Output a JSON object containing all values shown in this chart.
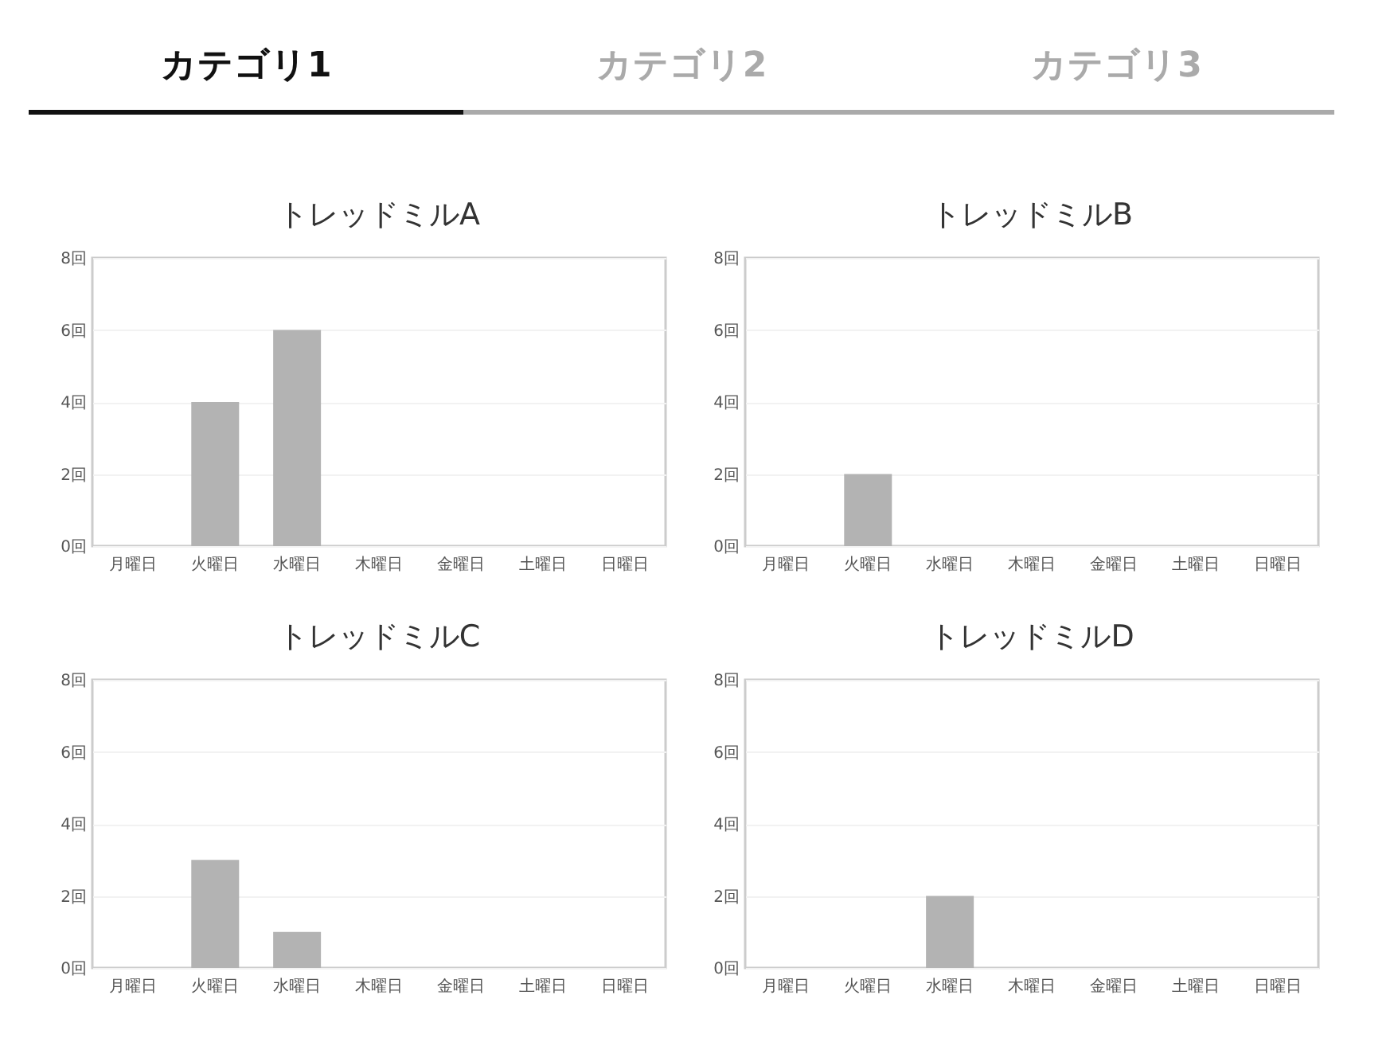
{
  "chart_data": [
    {
      "type": "other",
      "annotations": [
        "カテゴリ1",
        "カテゴリ2",
        "カテゴリ3"
      ]
    },
    {
      "type": "bar",
      "title": "トレッドミルA",
      "categories": [
        "月曜日",
        "火曜日",
        "水曜日",
        "木曜日",
        "金曜日",
        "土曜日",
        "日曜日"
      ],
      "values": [
        0,
        4,
        6,
        0,
        0,
        0,
        0
      ],
      "color": "#b3b3b3",
      "ylim": [
        0,
        8
      ],
      "yticks": [
        {
          "value": 0,
          "label": "0回"
        },
        {
          "value": 2,
          "label": "2回"
        },
        {
          "value": 4,
          "label": "4回"
        },
        {
          "value": 6,
          "label": "6回"
        },
        {
          "value": 8,
          "label": "8回"
        }
      ],
      "grid": "y"
    },
    {
      "type": "bar",
      "title": "トレッドミルB",
      "categories": [
        "月曜日",
        "火曜日",
        "水曜日",
        "木曜日",
        "金曜日",
        "土曜日",
        "日曜日"
      ],
      "values": [
        0,
        2,
        0,
        0,
        0,
        0,
        0
      ],
      "color": "#b3b3b3",
      "ylim": [
        0,
        8
      ],
      "yticks": [
        {
          "value": 0,
          "label": "0回"
        },
        {
          "value": 2,
          "label": "2回"
        },
        {
          "value": 4,
          "label": "4回"
        },
        {
          "value": 6,
          "label": "6回"
        },
        {
          "value": 8,
          "label": "8回"
        }
      ],
      "grid": "y"
    },
    {
      "type": "bar",
      "title": "トレッドミルC",
      "categories": [
        "月曜日",
        "火曜日",
        "水曜日",
        "木曜日",
        "金曜日",
        "土曜日",
        "日曜日"
      ],
      "values": [
        0,
        3,
        1,
        0,
        0,
        0,
        0
      ],
      "color": "#b3b3b3",
      "ylim": [
        0,
        8
      ],
      "yticks": [
        {
          "value": 0,
          "label": "0回"
        },
        {
          "value": 2,
          "label": "2回"
        },
        {
          "value": 4,
          "label": "4回"
        },
        {
          "value": 6,
          "label": "6回"
        },
        {
          "value": 8,
          "label": "8回"
        }
      ],
      "grid": "y"
    },
    {
      "type": "bar",
      "title": "トレッドミルD",
      "categories": [
        "月曜日",
        "火曜日",
        "水曜日",
        "木曜日",
        "金曜日",
        "土曜日",
        "日曜日"
      ],
      "values": [
        0,
        0,
        2,
        0,
        0,
        0,
        0
      ],
      "color": "#b3b3b3",
      "ylim": [
        0,
        8
      ],
      "yticks": [
        {
          "value": 0,
          "label": "0回"
        },
        {
          "value": 2,
          "label": "2回"
        },
        {
          "value": 4,
          "label": "4回"
        },
        {
          "value": 6,
          "label": "6回"
        },
        {
          "value": 8,
          "label": "8回"
        }
      ],
      "grid": "y"
    }
  ]
}
